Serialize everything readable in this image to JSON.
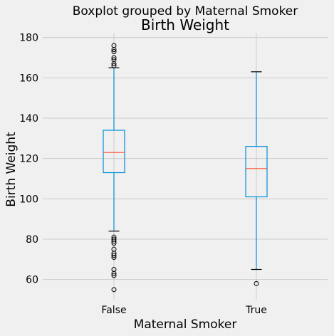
{
  "chart_data": {
    "type": "boxplot",
    "suptitle": "Boxplot grouped by Maternal Smoker",
    "title": "Birth Weight",
    "xlabel": "Maternal Smoker",
    "ylabel": "Birth Weight",
    "ylim": [
      50,
      182
    ],
    "yticks": [
      60,
      80,
      100,
      120,
      140,
      160,
      180
    ],
    "grid": true,
    "colors": {
      "background": "#f0f0f0",
      "grid": "#cbcbcb",
      "box": "#008fd5",
      "median": "#fc4f30",
      "flier": "#000000"
    },
    "categories": [
      "False",
      "True"
    ],
    "boxes": [
      {
        "category": "False",
        "whisker_low": 84,
        "q1": 113,
        "median": 123,
        "q3": 134,
        "whisker_high": 165,
        "fliers": [
          55,
          62,
          63,
          65,
          71,
          72,
          73,
          75,
          78,
          79,
          80,
          81,
          166,
          167,
          169,
          170,
          173,
          174,
          176
        ]
      },
      {
        "category": "True",
        "whisker_low": 65,
        "q1": 101,
        "median": 115,
        "q3": 126,
        "whisker_high": 163,
        "fliers": [
          58
        ]
      }
    ]
  }
}
